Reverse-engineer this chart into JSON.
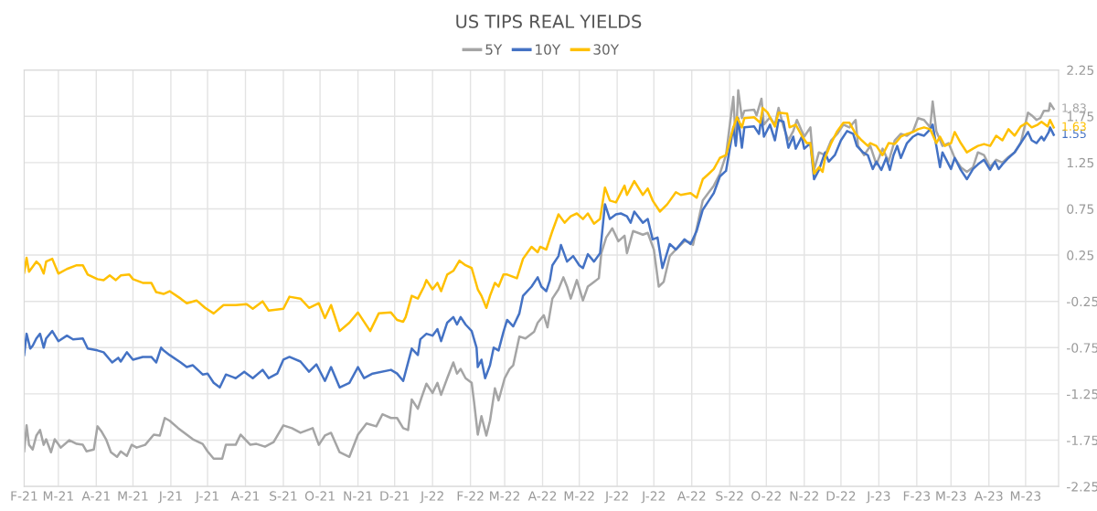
{
  "chart_data": {
    "type": "line",
    "title": "US TIPS REAL YIELDS",
    "legend": "top",
    "grid": true,
    "line_style": "solid",
    "marker": "none",
    "xlim": [
      "2021-02-01",
      "2023-05-28"
    ],
    "xticks": [
      {
        "value": "2021-02-01",
        "label": "F-21"
      },
      {
        "value": "2021-03-01",
        "label": "M-21"
      },
      {
        "value": "2021-04-01",
        "label": "A-21"
      },
      {
        "value": "2021-05-01",
        "label": "M-21"
      },
      {
        "value": "2021-06-01",
        "label": "J-21"
      },
      {
        "value": "2021-07-01",
        "label": "J-21"
      },
      {
        "value": "2021-08-01",
        "label": "A-21"
      },
      {
        "value": "2021-09-01",
        "label": "S-21"
      },
      {
        "value": "2021-10-01",
        "label": "O-21"
      },
      {
        "value": "2021-11-01",
        "label": "N-21"
      },
      {
        "value": "2021-12-01",
        "label": "D-21"
      },
      {
        "value": "2022-01-01",
        "label": "J-22"
      },
      {
        "value": "2022-02-01",
        "label": "F-22"
      },
      {
        "value": "2022-03-01",
        "label": "M-22"
      },
      {
        "value": "2022-04-01",
        "label": "A-22"
      },
      {
        "value": "2022-05-01",
        "label": "M-22"
      },
      {
        "value": "2022-06-01",
        "label": "J-22"
      },
      {
        "value": "2022-07-01",
        "label": "J-22"
      },
      {
        "value": "2022-08-01",
        "label": "A-22"
      },
      {
        "value": "2022-09-01",
        "label": "S-22"
      },
      {
        "value": "2022-10-01",
        "label": "O-22"
      },
      {
        "value": "2022-11-01",
        "label": "N-22"
      },
      {
        "value": "2022-12-01",
        "label": "D-22"
      },
      {
        "value": "2023-01-01",
        "label": "J-23"
      },
      {
        "value": "2023-02-01",
        "label": "F-23"
      },
      {
        "value": "2023-03-01",
        "label": "M-23"
      },
      {
        "value": "2023-04-01",
        "label": "A-23"
      },
      {
        "value": "2023-05-01",
        "label": "M-23"
      }
    ],
    "ylim": [
      -2.25,
      2.25
    ],
    "yticks": [
      -2.25,
      -1.75,
      -1.25,
      -0.75,
      -0.25,
      0.25,
      0.75,
      1.25,
      1.75,
      2.25
    ],
    "annotations": [
      {
        "text": "1.83",
        "x": "2023-05-24",
        "y": 1.83
      },
      {
        "text": "1.55",
        "x": "2023-05-24",
        "y": 1.55
      },
      {
        "text": "1.63",
        "x": "2023-05-24",
        "y": 1.63
      }
    ],
    "series": [
      {
        "name": "5Y",
        "color": "#a5a5a5",
        "x": [
          "2021-02-01",
          "2021-02-03",
          "2021-02-05",
          "2021-02-08",
          "2021-02-11",
          "2021-02-14",
          "2021-02-17",
          "2021-02-19",
          "2021-02-23",
          "2021-02-26",
          "2021-03-03",
          "2021-03-10",
          "2021-03-16",
          "2021-03-21",
          "2021-03-24",
          "2021-03-30",
          "2021-04-02",
          "2021-04-05",
          "2021-04-09",
          "2021-04-13",
          "2021-04-18",
          "2021-04-21",
          "2021-04-26",
          "2021-04-30",
          "2021-05-04",
          "2021-05-11",
          "2021-05-18",
          "2021-05-23",
          "2021-05-27",
          "2021-05-31",
          "2021-06-07",
          "2021-06-14",
          "2021-06-19",
          "2021-06-27",
          "2021-07-01",
          "2021-07-06",
          "2021-07-13",
          "2021-07-16",
          "2021-07-24",
          "2021-07-28",
          "2021-08-05",
          "2021-08-10",
          "2021-08-17",
          "2021-08-24",
          "2021-09-01",
          "2021-09-08",
          "2021-09-15",
          "2021-09-25",
          "2021-09-30",
          "2021-10-05",
          "2021-10-10",
          "2021-10-17",
          "2021-10-25",
          "2021-11-01",
          "2021-11-08",
          "2021-11-16",
          "2021-11-21",
          "2021-11-28",
          "2021-12-03",
          "2021-12-08",
          "2021-12-12",
          "2021-12-15",
          "2021-12-20",
          "2021-12-23",
          "2021-12-27",
          "2022-01-01",
          "2022-01-05",
          "2022-01-08",
          "2022-01-13",
          "2022-01-18",
          "2022-01-21",
          "2022-01-24",
          "2022-01-28",
          "2022-02-02",
          "2022-02-04",
          "2022-02-07",
          "2022-02-10",
          "2022-02-14",
          "2022-02-17",
          "2022-02-21",
          "2022-02-24",
          "2022-03-01",
          "2022-03-05",
          "2022-03-08",
          "2022-03-13",
          "2022-03-18",
          "2022-03-25",
          "2022-03-28",
          "2022-04-02",
          "2022-04-05",
          "2022-04-09",
          "2022-04-14",
          "2022-04-18",
          "2022-04-21",
          "2022-04-24",
          "2022-04-29",
          "2022-05-04",
          "2022-05-08",
          "2022-05-13",
          "2022-05-17",
          "2022-05-19",
          "2022-05-23",
          "2022-05-28",
          "2022-06-02",
          "2022-06-07",
          "2022-06-09",
          "2022-06-14",
          "2022-06-22",
          "2022-06-26",
          "2022-07-01",
          "2022-07-05",
          "2022-07-09",
          "2022-07-14",
          "2022-07-19",
          "2022-07-26",
          "2022-07-31",
          "2022-08-02",
          "2022-08-10",
          "2022-08-15",
          "2022-08-19",
          "2022-08-24",
          "2022-08-29",
          "2022-09-04",
          "2022-09-06",
          "2022-09-08",
          "2022-09-11",
          "2022-09-13",
          "2022-09-21",
          "2022-09-23",
          "2022-09-27",
          "2022-09-29",
          "2022-10-04",
          "2022-10-08",
          "2022-10-11",
          "2022-10-15",
          "2022-10-19",
          "2022-10-23",
          "2022-10-26",
          "2022-10-30",
          "2022-11-01",
          "2022-11-06",
          "2022-11-09",
          "2022-11-13",
          "2022-11-18",
          "2022-11-23",
          "2022-11-28",
          "2022-12-03",
          "2022-12-08",
          "2022-12-13",
          "2022-12-15",
          "2022-12-20",
          "2022-12-25",
          "2022-12-30",
          "2023-01-04",
          "2023-01-09",
          "2023-01-14",
          "2023-01-19",
          "2023-01-24",
          "2023-01-29",
          "2023-02-02",
          "2023-02-07",
          "2023-02-12",
          "2023-02-14",
          "2023-02-17",
          "2023-02-22",
          "2023-02-27",
          "2023-03-04",
          "2023-03-09",
          "2023-03-14",
          "2023-03-19",
          "2023-03-23",
          "2023-03-28",
          "2023-04-02",
          "2023-04-07",
          "2023-04-12",
          "2023-04-17",
          "2023-04-22",
          "2023-04-27",
          "2023-05-03",
          "2023-05-06",
          "2023-05-10",
          "2023-05-13",
          "2023-05-16",
          "2023-05-20",
          "2023-05-21",
          "2023-05-24"
        ],
        "values": [
          -1.87,
          -1.59,
          -1.8,
          -1.85,
          -1.7,
          -1.64,
          -1.8,
          -1.74,
          -1.88,
          -1.74,
          -1.83,
          -1.75,
          -1.79,
          -1.8,
          -1.87,
          -1.85,
          -1.6,
          -1.65,
          -1.74,
          -1.88,
          -1.93,
          -1.87,
          -1.92,
          -1.8,
          -1.83,
          -1.8,
          -1.69,
          -1.7,
          -1.51,
          -1.54,
          -1.62,
          -1.69,
          -1.74,
          -1.79,
          -1.87,
          -1.95,
          -1.95,
          -1.8,
          -1.8,
          -1.69,
          -1.8,
          -1.79,
          -1.82,
          -1.77,
          -1.59,
          -1.62,
          -1.67,
          -1.62,
          -1.8,
          -1.7,
          -1.67,
          -1.88,
          -1.93,
          -1.69,
          -1.57,
          -1.6,
          -1.47,
          -1.51,
          -1.51,
          -1.62,
          -1.64,
          -1.31,
          -1.41,
          -1.29,
          -1.14,
          -1.24,
          -1.13,
          -1.26,
          -1.08,
          -0.91,
          -1.03,
          -0.98,
          -1.08,
          -1.13,
          -1.34,
          -1.69,
          -1.49,
          -1.7,
          -1.54,
          -1.19,
          -1.32,
          -1.08,
          -0.98,
          -0.94,
          -0.63,
          -0.65,
          -0.58,
          -0.48,
          -0.4,
          -0.53,
          -0.22,
          -0.12,
          0.01,
          -0.09,
          -0.22,
          -0.02,
          -0.24,
          -0.09,
          -0.04,
          0.0,
          0.27,
          0.44,
          0.54,
          0.4,
          0.46,
          0.27,
          0.51,
          0.47,
          0.49,
          0.31,
          -0.09,
          -0.04,
          0.24,
          0.31,
          0.4,
          0.39,
          0.36,
          0.84,
          0.93,
          1.0,
          1.13,
          1.33,
          1.96,
          1.46,
          2.03,
          1.73,
          1.81,
          1.82,
          1.76,
          1.94,
          1.66,
          1.74,
          1.66,
          1.84,
          1.64,
          1.49,
          1.59,
          1.71,
          1.59,
          1.53,
          1.63,
          1.17,
          1.36,
          1.33,
          1.49,
          1.56,
          1.66,
          1.63,
          1.71,
          1.43,
          1.33,
          1.43,
          1.23,
          1.4,
          1.26,
          1.49,
          1.56,
          1.54,
          1.59,
          1.73,
          1.71,
          1.63,
          1.91,
          1.59,
          1.43,
          1.46,
          1.3,
          1.2,
          1.15,
          1.2,
          1.36,
          1.33,
          1.2,
          1.28,
          1.25,
          1.31,
          1.36,
          1.46,
          1.79,
          1.76,
          1.71,
          1.73,
          1.81,
          1.81,
          1.89,
          1.83
        ]
      },
      {
        "name": "10Y",
        "color": "#4472c4",
        "x": [
          "2021-02-01",
          "2021-02-03",
          "2021-02-06",
          "2021-02-08",
          "2021-02-11",
          "2021-02-14",
          "2021-02-17",
          "2021-02-19",
          "2021-02-24",
          "2021-03-01",
          "2021-03-08",
          "2021-03-13",
          "2021-03-21",
          "2021-03-25",
          "2021-04-02",
          "2021-04-07",
          "2021-04-14",
          "2021-04-19",
          "2021-04-21",
          "2021-04-26",
          "2021-05-01",
          "2021-05-09",
          "2021-05-16",
          "2021-05-20",
          "2021-05-24",
          "2021-05-26",
          "2021-05-31",
          "2021-06-09",
          "2021-06-14",
          "2021-06-19",
          "2021-06-27",
          "2021-07-01",
          "2021-07-06",
          "2021-07-11",
          "2021-07-16",
          "2021-07-24",
          "2021-07-31",
          "2021-08-07",
          "2021-08-15",
          "2021-08-20",
          "2021-08-27",
          "2021-09-01",
          "2021-09-06",
          "2021-09-15",
          "2021-09-22",
          "2021-09-28",
          "2021-10-05",
          "2021-10-10",
          "2021-10-17",
          "2021-10-25",
          "2021-11-01",
          "2021-11-06",
          "2021-11-13",
          "2021-11-28",
          "2021-12-03",
          "2021-12-08",
          "2021-12-10",
          "2021-12-15",
          "2021-12-20",
          "2021-12-22",
          "2021-12-27",
          "2022-01-01",
          "2022-01-05",
          "2022-01-08",
          "2022-01-13",
          "2022-01-18",
          "2022-01-21",
          "2022-01-24",
          "2022-01-28",
          "2022-02-02",
          "2022-02-06",
          "2022-02-07",
          "2022-02-10",
          "2022-02-13",
          "2022-02-17",
          "2022-02-20",
          "2022-02-24",
          "2022-02-28",
          "2022-03-03",
          "2022-03-08",
          "2022-03-13",
          "2022-03-16",
          "2022-03-23",
          "2022-03-28",
          "2022-03-31",
          "2022-04-04",
          "2022-04-07",
          "2022-04-09",
          "2022-04-14",
          "2022-04-16",
          "2022-04-21",
          "2022-04-26",
          "2022-05-01",
          "2022-05-04",
          "2022-05-08",
          "2022-05-13",
          "2022-05-18",
          "2022-05-22",
          "2022-05-26",
          "2022-05-31",
          "2022-06-04",
          "2022-06-09",
          "2022-06-12",
          "2022-06-15",
          "2022-06-22",
          "2022-06-26",
          "2022-06-30",
          "2022-07-04",
          "2022-07-08",
          "2022-07-11",
          "2022-07-14",
          "2022-07-19",
          "2022-07-26",
          "2022-07-31",
          "2022-08-05",
          "2022-08-10",
          "2022-08-15",
          "2022-08-19",
          "2022-08-24",
          "2022-08-29",
          "2022-09-04",
          "2022-09-06",
          "2022-09-08",
          "2022-09-11",
          "2022-09-13",
          "2022-09-21",
          "2022-09-25",
          "2022-09-27",
          "2022-09-29",
          "2022-10-04",
          "2022-10-08",
          "2022-10-11",
          "2022-10-15",
          "2022-10-19",
          "2022-10-23",
          "2022-10-25",
          "2022-10-30",
          "2022-11-01",
          "2022-11-06",
          "2022-11-09",
          "2022-11-13",
          "2022-11-18",
          "2022-11-21",
          "2022-11-26",
          "2022-12-01",
          "2022-12-06",
          "2022-12-11",
          "2022-12-14",
          "2022-12-19",
          "2022-12-23",
          "2022-12-27",
          "2022-12-30",
          "2023-01-03",
          "2023-01-07",
          "2023-01-10",
          "2023-01-13",
          "2023-01-16",
          "2023-01-19",
          "2023-01-24",
          "2023-01-29",
          "2023-02-02",
          "2023-02-07",
          "2023-02-12",
          "2023-02-14",
          "2023-02-17",
          "2023-02-20",
          "2023-02-22",
          "2023-03-01",
          "2023-03-04",
          "2023-03-09",
          "2023-03-14",
          "2023-03-19",
          "2023-03-23",
          "2023-03-28",
          "2023-04-02",
          "2023-04-06",
          "2023-04-09",
          "2023-04-12",
          "2023-04-17",
          "2023-04-22",
          "2023-04-27",
          "2023-05-03",
          "2023-05-06",
          "2023-05-10",
          "2023-05-14",
          "2023-05-16",
          "2023-05-20",
          "2023-05-21",
          "2023-05-24"
        ],
        "values": [
          -0.83,
          -0.6,
          -0.76,
          -0.73,
          -0.65,
          -0.6,
          -0.75,
          -0.65,
          -0.57,
          -0.68,
          -0.62,
          -0.66,
          -0.65,
          -0.76,
          -0.78,
          -0.8,
          -0.91,
          -0.86,
          -0.9,
          -0.8,
          -0.88,
          -0.85,
          -0.85,
          -0.91,
          -0.75,
          -0.78,
          -0.83,
          -0.91,
          -0.96,
          -0.94,
          -1.04,
          -1.03,
          -1.13,
          -1.18,
          -1.04,
          -1.08,
          -1.01,
          -1.08,
          -0.99,
          -1.08,
          -1.03,
          -0.88,
          -0.85,
          -0.9,
          -1.01,
          -0.93,
          -1.11,
          -0.96,
          -1.18,
          -1.13,
          -0.96,
          -1.08,
          -1.03,
          -0.99,
          -1.03,
          -1.11,
          -1.01,
          -0.76,
          -0.83,
          -0.66,
          -0.6,
          -0.62,
          -0.55,
          -0.68,
          -0.48,
          -0.42,
          -0.5,
          -0.42,
          -0.5,
          -0.57,
          -0.75,
          -0.96,
          -0.88,
          -1.08,
          -0.94,
          -0.75,
          -0.78,
          -0.58,
          -0.45,
          -0.52,
          -0.38,
          -0.19,
          -0.09,
          0.01,
          -0.09,
          -0.14,
          -0.02,
          0.14,
          0.24,
          0.36,
          0.18,
          0.24,
          0.14,
          0.11,
          0.26,
          0.18,
          0.27,
          0.8,
          0.64,
          0.69,
          0.7,
          0.67,
          0.6,
          0.72,
          0.6,
          0.64,
          0.42,
          0.44,
          0.11,
          0.24,
          0.37,
          0.31,
          0.42,
          0.37,
          0.51,
          0.74,
          0.84,
          0.92,
          1.1,
          1.16,
          1.63,
          1.43,
          1.73,
          1.41,
          1.63,
          1.64,
          1.56,
          1.74,
          1.53,
          1.66,
          1.49,
          1.71,
          1.69,
          1.41,
          1.53,
          1.4,
          1.53,
          1.4,
          1.46,
          1.07,
          1.17,
          1.36,
          1.26,
          1.33,
          1.49,
          1.59,
          1.56,
          1.43,
          1.36,
          1.33,
          1.18,
          1.26,
          1.17,
          1.3,
          1.17,
          1.33,
          1.43,
          1.3,
          1.46,
          1.53,
          1.56,
          1.54,
          1.61,
          1.66,
          1.43,
          1.2,
          1.36,
          1.18,
          1.3,
          1.17,
          1.07,
          1.18,
          1.23,
          1.28,
          1.17,
          1.26,
          1.18,
          1.23,
          1.3,
          1.36,
          1.46,
          1.58,
          1.49,
          1.46,
          1.53,
          1.49,
          1.58,
          1.63,
          1.55
        ]
      },
      {
        "name": "30Y",
        "color": "#ffc000",
        "x": [
          "2021-02-01",
          "2021-02-03",
          "2021-02-05",
          "2021-02-11",
          "2021-02-14",
          "2021-02-17",
          "2021-02-19",
          "2021-02-24",
          "2021-03-01",
          "2021-03-08",
          "2021-03-16",
          "2021-03-21",
          "2021-03-25",
          "2021-04-02",
          "2021-04-07",
          "2021-04-12",
          "2021-04-17",
          "2021-04-21",
          "2021-04-28",
          "2021-05-01",
          "2021-05-09",
          "2021-05-16",
          "2021-05-20",
          "2021-05-26",
          "2021-05-31",
          "2021-06-09",
          "2021-06-14",
          "2021-06-22",
          "2021-06-29",
          "2021-07-06",
          "2021-07-14",
          "2021-07-24",
          "2021-08-02",
          "2021-08-07",
          "2021-08-15",
          "2021-08-20",
          "2021-09-01",
          "2021-09-06",
          "2021-09-15",
          "2021-09-22",
          "2021-09-30",
          "2021-10-05",
          "2021-10-10",
          "2021-10-17",
          "2021-10-25",
          "2021-11-01",
          "2021-11-11",
          "2021-11-18",
          "2021-11-28",
          "2021-12-03",
          "2021-12-08",
          "2021-12-10",
          "2021-12-15",
          "2021-12-20",
          "2021-12-25",
          "2021-12-27",
          "2022-01-01",
          "2022-01-05",
          "2022-01-08",
          "2022-01-13",
          "2022-01-18",
          "2022-01-23",
          "2022-01-28",
          "2022-02-02",
          "2022-02-07",
          "2022-02-10",
          "2022-02-14",
          "2022-02-17",
          "2022-02-21",
          "2022-02-24",
          "2022-02-28",
          "2022-03-03",
          "2022-03-11",
          "2022-03-16",
          "2022-03-23",
          "2022-03-28",
          "2022-03-30",
          "2022-04-04",
          "2022-04-09",
          "2022-04-14",
          "2022-04-19",
          "2022-04-24",
          "2022-04-29",
          "2022-05-04",
          "2022-05-08",
          "2022-05-13",
          "2022-05-18",
          "2022-05-22",
          "2022-05-26",
          "2022-05-31",
          "2022-06-07",
          "2022-06-09",
          "2022-06-15",
          "2022-06-22",
          "2022-06-26",
          "2022-06-30",
          "2022-07-06",
          "2022-07-12",
          "2022-07-19",
          "2022-07-23",
          "2022-07-31",
          "2022-08-05",
          "2022-08-10",
          "2022-08-15",
          "2022-08-19",
          "2022-08-24",
          "2022-08-29",
          "2022-09-04",
          "2022-09-07",
          "2022-09-11",
          "2022-09-13",
          "2022-09-21",
          "2022-09-26",
          "2022-09-28",
          "2022-10-02",
          "2022-10-05",
          "2022-10-08",
          "2022-10-11",
          "2022-10-18",
          "2022-10-20",
          "2022-10-25",
          "2022-10-30",
          "2022-11-03",
          "2022-11-06",
          "2022-11-09",
          "2022-11-13",
          "2022-11-16",
          "2022-11-18",
          "2022-11-23",
          "2022-11-28",
          "2022-12-03",
          "2022-12-08",
          "2022-12-13",
          "2022-12-18",
          "2022-12-23",
          "2022-12-25",
          "2022-12-30",
          "2023-01-04",
          "2023-01-09",
          "2023-01-14",
          "2023-01-19",
          "2023-01-24",
          "2023-01-29",
          "2023-02-02",
          "2023-02-07",
          "2023-02-12",
          "2023-02-17",
          "2023-02-20",
          "2023-02-24",
          "2023-03-01",
          "2023-03-04",
          "2023-03-09",
          "2023-03-14",
          "2023-03-19",
          "2023-03-23",
          "2023-03-28",
          "2023-04-02",
          "2023-04-07",
          "2023-04-12",
          "2023-04-17",
          "2023-04-22",
          "2023-04-27",
          "2023-05-02",
          "2023-05-06",
          "2023-05-11",
          "2023-05-14",
          "2023-05-19",
          "2023-05-21",
          "2023-05-24"
        ],
        "values": [
          0.06,
          0.22,
          0.07,
          0.18,
          0.14,
          0.05,
          0.18,
          0.21,
          0.05,
          0.1,
          0.14,
          0.14,
          0.04,
          -0.01,
          -0.02,
          0.03,
          -0.02,
          0.03,
          0.04,
          -0.01,
          -0.05,
          -0.05,
          -0.15,
          -0.17,
          -0.14,
          -0.22,
          -0.27,
          -0.24,
          -0.32,
          -0.38,
          -0.29,
          -0.29,
          -0.28,
          -0.33,
          -0.25,
          -0.35,
          -0.33,
          -0.2,
          -0.22,
          -0.32,
          -0.27,
          -0.43,
          -0.29,
          -0.57,
          -0.48,
          -0.37,
          -0.57,
          -0.38,
          -0.37,
          -0.45,
          -0.47,
          -0.42,
          -0.19,
          -0.22,
          -0.09,
          -0.02,
          -0.12,
          -0.05,
          -0.14,
          0.04,
          0.08,
          0.19,
          0.14,
          0.11,
          -0.12,
          -0.19,
          -0.32,
          -0.19,
          -0.05,
          -0.09,
          0.04,
          0.04,
          0.0,
          0.21,
          0.34,
          0.28,
          0.34,
          0.31,
          0.51,
          0.69,
          0.6,
          0.67,
          0.7,
          0.64,
          0.7,
          0.59,
          0.64,
          0.98,
          0.84,
          0.82,
          1.0,
          0.9,
          1.05,
          0.9,
          0.97,
          0.84,
          0.72,
          0.8,
          0.93,
          0.9,
          0.92,
          0.87,
          1.07,
          1.13,
          1.18,
          1.3,
          1.33,
          1.63,
          1.74,
          1.63,
          1.73,
          1.74,
          1.68,
          1.84,
          1.79,
          1.71,
          1.64,
          1.79,
          1.78,
          1.63,
          1.66,
          1.54,
          1.46,
          1.46,
          1.13,
          1.2,
          1.15,
          1.3,
          1.46,
          1.59,
          1.68,
          1.68,
          1.56,
          1.49,
          1.43,
          1.46,
          1.43,
          1.33,
          1.46,
          1.45,
          1.53,
          1.56,
          1.58,
          1.61,
          1.63,
          1.61,
          1.46,
          1.53,
          1.43,
          1.46,
          1.58,
          1.46,
          1.36,
          1.4,
          1.43,
          1.45,
          1.43,
          1.54,
          1.49,
          1.61,
          1.54,
          1.64,
          1.68,
          1.63,
          1.66,
          1.69,
          1.64,
          1.71,
          1.63
        ]
      }
    ]
  }
}
